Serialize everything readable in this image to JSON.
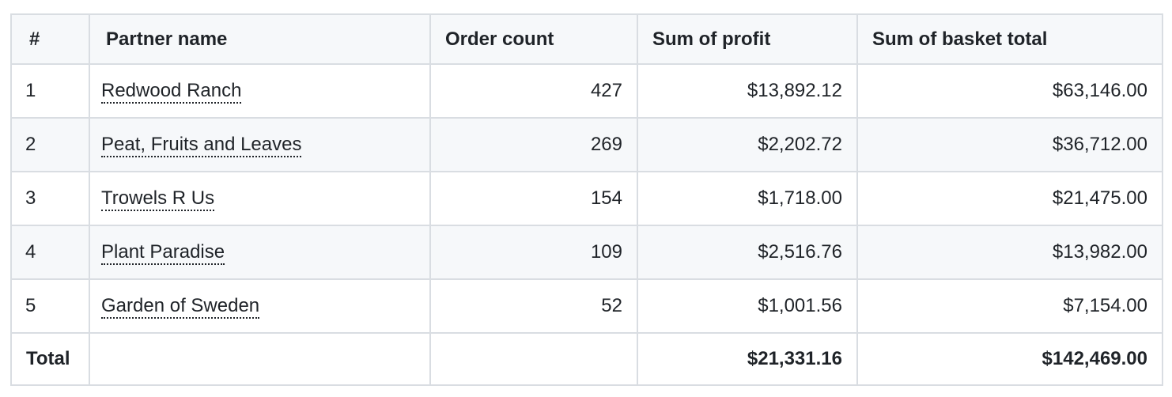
{
  "table": {
    "headers": [
      "#",
      "Partner name",
      "Order count",
      "Sum of profit",
      "Sum of basket total"
    ],
    "rows": [
      {
        "index": "1",
        "partner": "Redwood Ranch",
        "order_count": "427",
        "profit": "$13,892.12",
        "basket_total": "$63,146.00"
      },
      {
        "index": "2",
        "partner": "Peat, Fruits and Leaves",
        "order_count": "269",
        "profit": "$2,202.72",
        "basket_total": "$36,712.00"
      },
      {
        "index": "3",
        "partner": "Trowels R Us",
        "order_count": "154",
        "profit": "$1,718.00",
        "basket_total": "$21,475.00"
      },
      {
        "index": "4",
        "partner": "Plant Paradise",
        "order_count": "109",
        "profit": "$2,516.76",
        "basket_total": "$13,982.00"
      },
      {
        "index": "5",
        "partner": "Garden of Sweden",
        "order_count": "52",
        "profit": "$1,001.56",
        "basket_total": "$7,154.00"
      }
    ],
    "total": {
      "label": "Total",
      "order_count": "",
      "profit": "$21,331.16",
      "basket_total": "$142,469.00"
    }
  },
  "colors": {
    "border": "#d9dde2",
    "header_bg": "#f6f8fa",
    "alt_row_bg": "#f6f8fa",
    "text": "#1f2328"
  }
}
